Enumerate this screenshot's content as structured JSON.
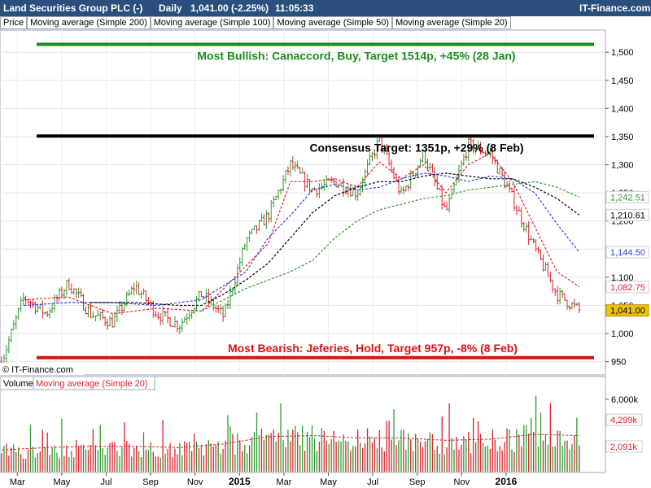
{
  "header": {
    "title": "Land Securities Group PLC (-)",
    "period": "Daily",
    "quote": "1,041.00 (-2.25%)",
    "time": "11:05:33",
    "brand": "IT-Finance.com"
  },
  "legend": [
    {
      "label": "Price",
      "color": "#000000"
    },
    {
      "label": "Moving average (Simple 200)",
      "color": "#2e9a2e"
    },
    {
      "label": "Moving average (Simple 100)",
      "color": "#000000"
    },
    {
      "label": "Moving average (Simple 50)",
      "color": "#2b3fd6"
    },
    {
      "label": "Moving average (Simple 20)",
      "color": "#e0202c"
    }
  ],
  "volume_legend": [
    {
      "label": "Volume",
      "color": "#000000"
    },
    {
      "label": "Moving average (Simple 20)",
      "color": "#e0202c"
    }
  ],
  "copyright": "© IT-Finance.com",
  "colors": {
    "up": "#2e9a2e",
    "down": "#e0202c",
    "bullish": "#1a8c1a",
    "consensus": "#000000",
    "bearish": "#e01010",
    "last": "#f2c200"
  },
  "chart_data": {
    "type": "line",
    "price_axis": {
      "ylim": [
        935,
        1535
      ],
      "ticks": [
        950,
        1000,
        1050,
        1100,
        1150,
        1200,
        1250,
        1300,
        1350,
        1400,
        1450,
        1500
      ],
      "tick_labels": [
        "950",
        "1,000",
        "1,050",
        "1,100",
        "1,150",
        "1,200",
        "1,250",
        "1,300",
        "1,350",
        "1,400",
        "1,450",
        "1,500"
      ]
    },
    "x_axis": {
      "labels": [
        "Mar",
        "May",
        "Jul",
        "Sep",
        "Nov",
        "2015",
        "Mar",
        "May",
        "Jul",
        "Sep",
        "Nov",
        "2016"
      ],
      "bold_labels": [
        "2015",
        "2016"
      ]
    },
    "price_series": [
      {
        "name": "Price",
        "months": [
          0,
          1,
          2,
          3,
          4,
          5,
          6,
          7,
          8,
          9,
          10,
          11,
          12,
          13,
          14,
          15,
          16,
          17,
          18,
          19,
          20,
          21,
          22,
          23,
          24,
          25,
          26
        ],
        "values": [
          950,
          1065,
          1035,
          1090,
          1035,
          1020,
          1085,
          1035,
          1015,
          1070,
          1030,
          1165,
          1210,
          1300,
          1255,
          1270,
          1250,
          1345,
          1245,
          1320,
          1215,
          1335,
          1320,
          1240,
          1150,
          1070,
          1041
        ]
      },
      {
        "name": "Moving average (Simple 20)",
        "months": [
          1,
          3,
          5,
          7,
          9,
          11,
          12,
          13,
          14,
          15,
          16,
          17,
          18,
          19,
          20,
          21,
          22,
          23,
          24,
          25,
          26
        ],
        "values": [
          1060,
          1065,
          1035,
          1045,
          1040,
          1120,
          1160,
          1270,
          1270,
          1275,
          1260,
          1305,
          1275,
          1300,
          1250,
          1300,
          1320,
          1270,
          1190,
          1110,
          1083
        ]
      },
      {
        "name": "Moving average (Simple 50)",
        "months": [
          1,
          3,
          5,
          7,
          9,
          11,
          12,
          13,
          14,
          15,
          16,
          17,
          18,
          19,
          20,
          21,
          22,
          23,
          24,
          25,
          26
        ],
        "values": [
          1050,
          1055,
          1055,
          1050,
          1060,
          1110,
          1170,
          1210,
          1255,
          1265,
          1255,
          1260,
          1275,
          1285,
          1280,
          1270,
          1280,
          1275,
          1250,
          1195,
          1144.5
        ]
      },
      {
        "name": "Moving average (Simple 100)",
        "months": [
          4,
          6,
          8,
          9,
          10,
          11,
          12,
          13,
          14,
          15,
          16,
          17,
          18,
          19,
          20,
          21,
          22,
          23,
          24,
          25,
          26
        ],
        "values": [
          1055,
          1055,
          1050,
          1050,
          1070,
          1095,
          1125,
          1170,
          1215,
          1245,
          1260,
          1270,
          1270,
          1280,
          1285,
          1280,
          1275,
          1275,
          1260,
          1240,
          1210.61
        ]
      },
      {
        "name": "Moving average (Simple 200)",
        "months": [
          9,
          10,
          11,
          12,
          13,
          14,
          15,
          16,
          17,
          18,
          19,
          20,
          21,
          22,
          23,
          24,
          25,
          26
        ],
        "values": [
          1040,
          1060,
          1080,
          1095,
          1110,
          1130,
          1170,
          1200,
          1220,
          1230,
          1240,
          1245,
          1255,
          1260,
          1265,
          1270,
          1260,
          1242.51
        ]
      }
    ],
    "last_values": [
      {
        "label": "1,242.51",
        "value": 1242.51,
        "color": "#2e9a2e"
      },
      {
        "label": "1,210.61",
        "value": 1210.61,
        "color": "#000000"
      },
      {
        "label": "1,144.50",
        "value": 1144.5,
        "color": "#2b3fd6"
      },
      {
        "label": "1,082.75",
        "value": 1082.75,
        "color": "#e0202c"
      },
      {
        "label": "1,041.00",
        "value": 1041,
        "color": "#000000",
        "bg": "#f2c200"
      }
    ],
    "annotations": [
      {
        "text": "Most Bullish: Canaccord, Buy, Target 1514p, +45% (28 Jan)",
        "value": 1514,
        "color": "#1a8c1a"
      },
      {
        "text": "Consensus Target: 1351p, +29% (8 Feb)",
        "value": 1351,
        "color": "#000000"
      },
      {
        "text": "Most Bearish: Jeferies, Hold, Target 957p, -8% (8 Feb)",
        "value": 957,
        "color": "#e01010"
      }
    ],
    "volume_axis": {
      "ylim": [
        0,
        6600
      ],
      "tick_labels": [
        {
          "label": "6,000k",
          "value": 6000
        }
      ],
      "ma_label": {
        "label": "4,299k",
        "value": 4299
      },
      "last_label": {
        "label": "2,091k",
        "value": 2091
      }
    },
    "volume_months": [
      0,
      2,
      4,
      6,
      8,
      10,
      12,
      14,
      16,
      18,
      20,
      22,
      24,
      26
    ],
    "volume_levels": [
      1800,
      2000,
      2100,
      2100,
      2000,
      2300,
      2900,
      3000,
      2800,
      2800,
      2600,
      2700,
      3100,
      3000
    ]
  }
}
